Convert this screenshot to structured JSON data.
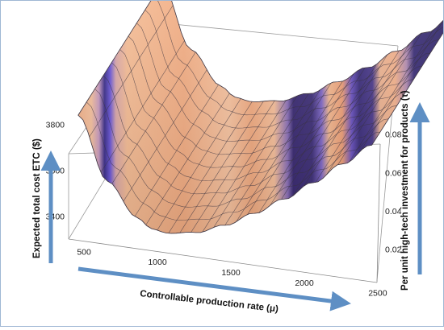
{
  "chart_data": {
    "type": "surface",
    "title": "",
    "xlabel": "Controllable production rate (μ)",
    "ylabel": "Per unit high-tech investment for products (τ)",
    "zlabel": "Expected total cost ETC ($)",
    "x_ticks": [
      "500",
      "1000",
      "1500",
      "2000",
      "2500"
    ],
    "y_ticks": [
      "0.02",
      "0.04",
      "0.06",
      "0.08"
    ],
    "z_ticks": [
      "3400",
      "3600",
      "3800"
    ],
    "xlim": [
      450,
      2550
    ],
    "ylim": [
      0.01,
      0.09
    ],
    "zlim": [
      3300,
      3950
    ],
    "surface_profile": {
      "x": [
        500,
        700,
        900,
        1000,
        1100,
        1300,
        1500,
        1700,
        1900,
        2100,
        2300,
        2500
      ],
      "z": [
        3830,
        3560,
        3420,
        3380,
        3370,
        3390,
        3440,
        3510,
        3590,
        3680,
        3780,
        3880
      ]
    },
    "colors": {
      "surface_base": "#f4b48c",
      "band_dark": "#3a2a72",
      "band_light": "#6a4fd0",
      "mesh": "#3a3340",
      "axis_arrow": "#5e8fc4"
    }
  }
}
